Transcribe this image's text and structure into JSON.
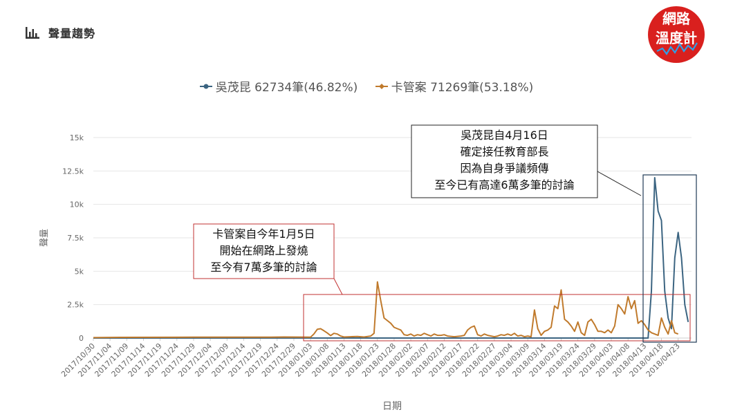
{
  "header": {
    "title": "聲量趨勢",
    "icon": "bar-chart-icon"
  },
  "logo": {
    "line1": "網路",
    "line2": "溫度計",
    "color": "#d9201e"
  },
  "legend": {
    "items": [
      {
        "label": "吳茂昆 62734筆(46.82%)",
        "color": "#3b6481"
      },
      {
        "label": "卡管案 71269筆(53.18%)",
        "color": "#c07a2c"
      }
    ]
  },
  "annotations": {
    "left": {
      "lines": [
        "卡管案自今年1月5日",
        "開始在網路上發燒",
        "至今有7萬多筆的討論"
      ],
      "border": "#c23030"
    },
    "right": {
      "lines": [
        "吳茂昆自4月16日",
        "確定接任教育部長",
        "因為自身爭議頻傳",
        "至今已有高達6萬多筆的討論"
      ],
      "border": "#222222"
    }
  },
  "chart_data": {
    "type": "line",
    "xlabel": "日期",
    "ylabel": "聲量",
    "ylim": [
      0,
      15000
    ],
    "yticks": [
      0,
      2500,
      5000,
      7500,
      10000,
      12500,
      15000
    ],
    "ytick_labels": [
      "0",
      "2.5k",
      "5k",
      "7.5k",
      "10k",
      "12.5k",
      "15k"
    ],
    "x_start": "2017-10-30",
    "x_end": "2018-04-27",
    "xtick_labels": [
      "2017/10/30",
      "2017/11/04",
      "2017/11/09",
      "2017/11/14",
      "2017/11/19",
      "2017/11/24",
      "2017/11/29",
      "2017/12/04",
      "2017/12/09",
      "2017/12/14",
      "2017/12/19",
      "2017/12/24",
      "2017/12/29",
      "2018/01/03",
      "2018/01/08",
      "2018/01/13",
      "2018/01/18",
      "2018/01/23",
      "2018/01/28",
      "2018/02/02",
      "2018/02/07",
      "2018/02/12",
      "2018/02/17",
      "2018/02/22",
      "2018/02/27",
      "2018/03/04",
      "2018/03/09",
      "2018/03/14",
      "2018/03/19",
      "2018/03/24",
      "2018/03/29",
      "2018/04/03",
      "2018/04/08",
      "2018/04/13",
      "2018/04/18",
      "2018/04/23"
    ],
    "grid": true,
    "series": [
      {
        "name": "吳茂昆",
        "color": "#3b6481",
        "points": [
          [
            "2017-10-30",
            0
          ],
          [
            "2018-04-13",
            0
          ],
          [
            "2018-04-14",
            0
          ],
          [
            "2018-04-15",
            3500
          ],
          [
            "2018-04-16",
            12000
          ],
          [
            "2018-04-17",
            9500
          ],
          [
            "2018-04-18",
            8800
          ],
          [
            "2018-04-19",
            3500
          ],
          [
            "2018-04-20",
            1500
          ],
          [
            "2018-04-21",
            700
          ],
          [
            "2018-04-22",
            6000
          ],
          [
            "2018-04-23",
            7900
          ],
          [
            "2018-04-24",
            6000
          ],
          [
            "2018-04-25",
            2500
          ],
          [
            "2018-04-26",
            1200
          ]
        ]
      },
      {
        "name": "卡管案",
        "color": "#c07a2c",
        "points": [
          [
            "2017-10-30",
            30
          ],
          [
            "2017-11-07",
            50
          ],
          [
            "2017-11-29",
            60
          ],
          [
            "2017-12-22",
            60
          ],
          [
            "2017-12-26",
            80
          ],
          [
            "2018-01-03",
            60
          ],
          [
            "2018-01-04",
            300
          ],
          [
            "2018-01-05",
            650
          ],
          [
            "2018-01-06",
            700
          ],
          [
            "2018-01-07",
            550
          ],
          [
            "2018-01-08",
            380
          ],
          [
            "2018-01-09",
            180
          ],
          [
            "2018-01-10",
            350
          ],
          [
            "2018-01-11",
            300
          ],
          [
            "2018-01-12",
            150
          ],
          [
            "2018-01-13",
            80
          ],
          [
            "2018-01-15",
            100
          ],
          [
            "2018-01-17",
            120
          ],
          [
            "2018-01-19",
            80
          ],
          [
            "2018-01-21",
            150
          ],
          [
            "2018-01-22",
            350
          ],
          [
            "2018-01-23",
            4200
          ],
          [
            "2018-01-24",
            2800
          ],
          [
            "2018-01-25",
            1500
          ],
          [
            "2018-01-26",
            1300
          ],
          [
            "2018-01-27",
            1100
          ],
          [
            "2018-01-28",
            800
          ],
          [
            "2018-01-29",
            700
          ],
          [
            "2018-01-30",
            600
          ],
          [
            "2018-01-31",
            250
          ],
          [
            "2018-02-01",
            200
          ],
          [
            "2018-02-02",
            300
          ],
          [
            "2018-02-03",
            150
          ],
          [
            "2018-02-04",
            250
          ],
          [
            "2018-02-05",
            200
          ],
          [
            "2018-02-06",
            350
          ],
          [
            "2018-02-07",
            250
          ],
          [
            "2018-02-08",
            150
          ],
          [
            "2018-02-09",
            300
          ],
          [
            "2018-02-10",
            200
          ],
          [
            "2018-02-11",
            200
          ],
          [
            "2018-02-12",
            250
          ],
          [
            "2018-02-13",
            150
          ],
          [
            "2018-02-15",
            100
          ],
          [
            "2018-02-17",
            150
          ],
          [
            "2018-02-18",
            200
          ],
          [
            "2018-02-19",
            600
          ],
          [
            "2018-02-20",
            800
          ],
          [
            "2018-02-21",
            900
          ],
          [
            "2018-02-22",
            250
          ],
          [
            "2018-02-23",
            150
          ],
          [
            "2018-02-24",
            300
          ],
          [
            "2018-02-25",
            200
          ],
          [
            "2018-02-27",
            100
          ],
          [
            "2018-02-28",
            150
          ],
          [
            "2018-03-01",
            250
          ],
          [
            "2018-03-02",
            200
          ],
          [
            "2018-03-03",
            300
          ],
          [
            "2018-03-04",
            200
          ],
          [
            "2018-03-05",
            350
          ],
          [
            "2018-03-06",
            150
          ],
          [
            "2018-03-07",
            200
          ],
          [
            "2018-03-08",
            100
          ],
          [
            "2018-03-09",
            150
          ],
          [
            "2018-03-10",
            100
          ],
          [
            "2018-03-11",
            2100
          ],
          [
            "2018-03-12",
            700
          ],
          [
            "2018-03-13",
            200
          ],
          [
            "2018-03-14",
            500
          ],
          [
            "2018-03-15",
            600
          ],
          [
            "2018-03-16",
            800
          ],
          [
            "2018-03-17",
            2400
          ],
          [
            "2018-03-18",
            2200
          ],
          [
            "2018-03-19",
            3600
          ],
          [
            "2018-03-20",
            1400
          ],
          [
            "2018-03-21",
            1200
          ],
          [
            "2018-03-22",
            900
          ],
          [
            "2018-03-23",
            500
          ],
          [
            "2018-03-24",
            1200
          ],
          [
            "2018-03-25",
            400
          ],
          [
            "2018-03-26",
            200
          ],
          [
            "2018-03-27",
            1200
          ],
          [
            "2018-03-28",
            1400
          ],
          [
            "2018-03-29",
            1000
          ],
          [
            "2018-03-30",
            500
          ],
          [
            "2018-03-31",
            500
          ],
          [
            "2018-04-01",
            400
          ],
          [
            "2018-04-02",
            600
          ],
          [
            "2018-04-03",
            400
          ],
          [
            "2018-04-04",
            900
          ],
          [
            "2018-04-05",
            2500
          ],
          [
            "2018-04-06",
            2200
          ],
          [
            "2018-04-07",
            1800
          ],
          [
            "2018-04-08",
            3100
          ],
          [
            "2018-04-09",
            2200
          ],
          [
            "2018-04-10",
            2800
          ],
          [
            "2018-04-11",
            1100
          ],
          [
            "2018-04-12",
            1300
          ],
          [
            "2018-04-13",
            1000
          ],
          [
            "2018-04-14",
            600
          ],
          [
            "2018-04-15",
            400
          ],
          [
            "2018-04-16",
            300
          ],
          [
            "2018-04-17",
            200
          ],
          [
            "2018-04-18",
            1500
          ],
          [
            "2018-04-19",
            800
          ],
          [
            "2018-04-20",
            300
          ],
          [
            "2018-04-21",
            1300
          ],
          [
            "2018-04-22",
            400
          ],
          [
            "2018-04-23",
            300
          ]
        ]
      }
    ]
  }
}
